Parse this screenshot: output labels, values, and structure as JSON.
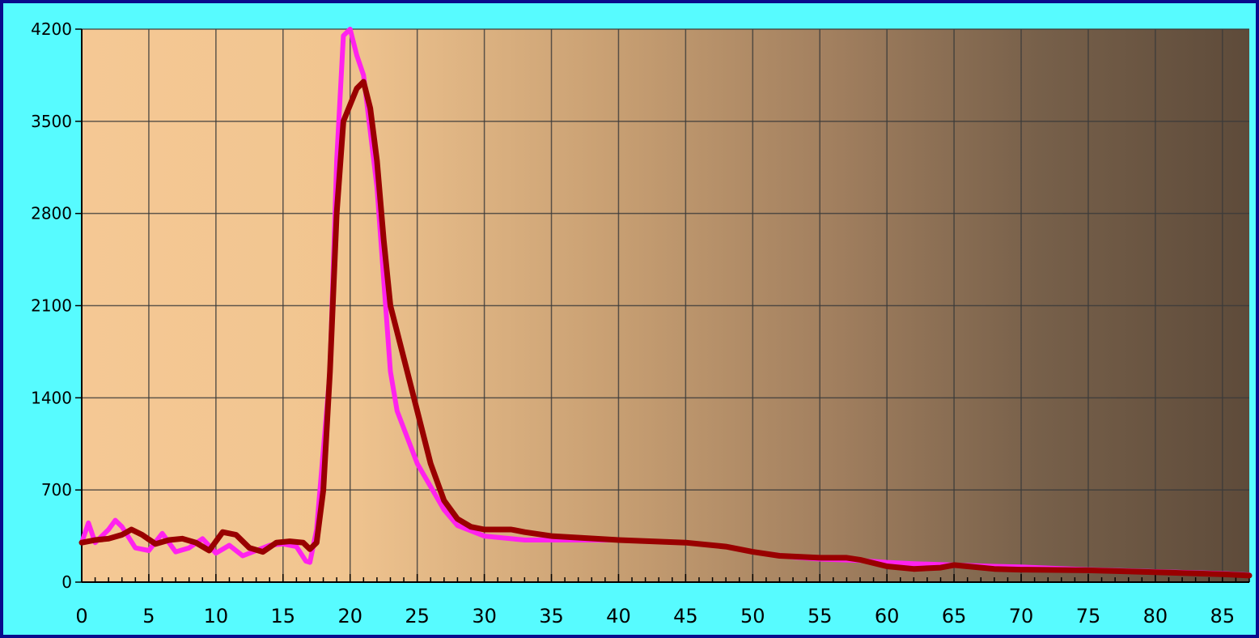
{
  "colors": {
    "outer_border": "#0a0a8c",
    "frame_background": "#57fbff",
    "plot_gradient_start": "#f5c894",
    "plot_gradient_end": "#5e4b3a",
    "grid": "#3a3a3a",
    "axis": "#000000"
  },
  "chart_data": {
    "type": "line",
    "title": "",
    "xlabel": "",
    "ylabel": "",
    "xlim": [
      0,
      87
    ],
    "ylim": [
      0,
      4200
    ],
    "x_ticks": [
      0,
      5,
      10,
      15,
      20,
      25,
      30,
      35,
      40,
      45,
      50,
      55,
      60,
      65,
      70,
      75,
      80,
      85
    ],
    "x_tick_labels": [
      "0",
      "5",
      "10",
      "15",
      "20",
      "25",
      "30",
      "35",
      "40",
      "45",
      "50",
      "55",
      "60",
      "65",
      "70",
      "75",
      "80",
      "85"
    ],
    "y_ticks": [
      0,
      700,
      1400,
      2100,
      2800,
      3500,
      4200
    ],
    "y_tick_labels": [
      "0",
      "700",
      "1400",
      "2100",
      "2800",
      "3500",
      "4200"
    ],
    "grid": true,
    "legend": "none",
    "series": [
      {
        "color": "#ff22ee",
        "points": [
          [
            0,
            300
          ],
          [
            0.5,
            450
          ],
          [
            1,
            300
          ],
          [
            2,
            400
          ],
          [
            2.5,
            470
          ],
          [
            3,
            420
          ],
          [
            4,
            260
          ],
          [
            5,
            240
          ],
          [
            6,
            370
          ],
          [
            7,
            230
          ],
          [
            8,
            260
          ],
          [
            9,
            330
          ],
          [
            10,
            220
          ],
          [
            11,
            280
          ],
          [
            12,
            200
          ],
          [
            13,
            240
          ],
          [
            14,
            280
          ],
          [
            15,
            290
          ],
          [
            16,
            270
          ],
          [
            16.7,
            160
          ],
          [
            17,
            150
          ],
          [
            17.5,
            400
          ],
          [
            18.5,
            1600
          ],
          [
            19,
            3200
          ],
          [
            19.5,
            4150
          ],
          [
            20,
            4200
          ],
          [
            20.5,
            4000
          ],
          [
            21,
            3850
          ],
          [
            22,
            3000
          ],
          [
            23,
            1600
          ],
          [
            23.5,
            1300
          ],
          [
            25,
            900
          ],
          [
            27,
            550
          ],
          [
            28,
            430
          ],
          [
            30,
            350
          ],
          [
            33,
            320
          ],
          [
            35,
            320
          ],
          [
            40,
            320
          ],
          [
            45,
            300
          ],
          [
            48,
            270
          ],
          [
            50,
            230
          ],
          [
            53,
            190
          ],
          [
            55,
            175
          ],
          [
            58,
            165
          ],
          [
            60,
            150
          ],
          [
            62,
            140
          ],
          [
            65,
            130
          ],
          [
            68,
            120
          ],
          [
            70,
            115
          ],
          [
            75,
            95
          ],
          [
            80,
            80
          ],
          [
            85,
            65
          ],
          [
            87,
            55
          ]
        ]
      },
      {
        "color": "#990000",
        "points": [
          [
            0,
            300
          ],
          [
            1,
            320
          ],
          [
            2,
            330
          ],
          [
            3,
            360
          ],
          [
            3.7,
            400
          ],
          [
            4.5,
            360
          ],
          [
            5.5,
            290
          ],
          [
            6.5,
            320
          ],
          [
            7.5,
            330
          ],
          [
            8.5,
            300
          ],
          [
            9.5,
            240
          ],
          [
            10.5,
            380
          ],
          [
            11.5,
            360
          ],
          [
            12.5,
            260
          ],
          [
            13.5,
            230
          ],
          [
            14.5,
            300
          ],
          [
            15.5,
            310
          ],
          [
            16.5,
            300
          ],
          [
            17,
            250
          ],
          [
            17.5,
            300
          ],
          [
            18,
            700
          ],
          [
            18.5,
            1600
          ],
          [
            19,
            2800
          ],
          [
            19.5,
            3500
          ],
          [
            20.5,
            3750
          ],
          [
            21,
            3800
          ],
          [
            21.5,
            3600
          ],
          [
            22,
            3200
          ],
          [
            22.5,
            2600
          ],
          [
            23,
            2100
          ],
          [
            24,
            1700
          ],
          [
            25,
            1300
          ],
          [
            26,
            900
          ],
          [
            27,
            620
          ],
          [
            28,
            480
          ],
          [
            29,
            420
          ],
          [
            30,
            400
          ],
          [
            32,
            400
          ],
          [
            33,
            380
          ],
          [
            35,
            350
          ],
          [
            40,
            320
          ],
          [
            45,
            300
          ],
          [
            48,
            270
          ],
          [
            50,
            230
          ],
          [
            52,
            200
          ],
          [
            55,
            185
          ],
          [
            57,
            185
          ],
          [
            58,
            170
          ],
          [
            60,
            120
          ],
          [
            62,
            100
          ],
          [
            64,
            110
          ],
          [
            65,
            130
          ],
          [
            66,
            120
          ],
          [
            68,
            100
          ],
          [
            70,
            95
          ],
          [
            75,
            90
          ],
          [
            80,
            75
          ],
          [
            85,
            60
          ],
          [
            87,
            50
          ]
        ]
      }
    ]
  }
}
